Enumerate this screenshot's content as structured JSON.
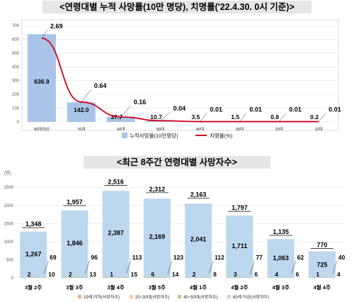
{
  "chart_data": [
    {
      "type": "bar",
      "title": "<연령대별 누적 사망률(10만 명당), 치명률('22.4.30. 0시 기준)>",
      "categories": [
        "80대이상",
        "70대",
        "60대",
        "50대",
        "40대",
        "30대",
        "20대",
        "10대"
      ],
      "yticks": [
        "0",
        "100",
        "200",
        "300",
        "400",
        "500",
        "600",
        "700"
      ],
      "ylim": [
        0,
        700
      ],
      "series": [
        {
          "name": "누적사망률(10만명당)",
          "kind": "bar",
          "color": "#a9c4e8",
          "values": [
            636.9,
            142.0,
            37.7,
            10.7,
            3.5,
            1.5,
            0.8,
            0.2
          ],
          "labels": [
            "636.9",
            "142.0",
            "37.7",
            "10.7",
            "3.5",
            "1.5",
            "0.8",
            "0.2"
          ]
        },
        {
          "name": "치명률(%)",
          "kind": "line",
          "color": "#d0021b",
          "values": [
            2.69,
            0.64,
            0.16,
            0.04,
            0.01,
            0.01,
            0.01,
            0.01
          ],
          "labels": [
            "2.69",
            "0.64",
            "0.16",
            "0.04",
            "0.01",
            "0.01",
            "0.01",
            "0.01"
          ]
        }
      ],
      "legend": "bottom"
    },
    {
      "type": "bar",
      "title": "<최근 8주간 연령대별 사망자수>",
      "unit_label": "(명)",
      "categories": [
        "3월 2주",
        "3월 3주",
        "3월 4주",
        "3월 5주",
        "4월 1주",
        "4월 2주",
        "4월 3주",
        "4월 4주"
      ],
      "yticks": [
        "0",
        "500",
        "1000",
        "1500",
        "2000",
        "2500"
      ],
      "ylim": [
        0,
        2700
      ],
      "totals": [
        1348,
        1957,
        2516,
        2312,
        2163,
        1797,
        1135,
        770
      ],
      "total_labels": [
        "1,348",
        "1,957",
        "2,516",
        "2,312",
        "2,163",
        "1,797",
        "1,135",
        "770"
      ],
      "series": [
        {
          "name": "19세 이하(사망자수)",
          "color": "#f4b183",
          "values": [
            0,
            0,
            0,
            0,
            0,
            0,
            0,
            0
          ],
          "labels": [
            "",
            "",
            "",
            "",
            "",
            "",
            "",
            ""
          ]
        },
        {
          "name": "20~30대(사망자수)",
          "color": "#f8cbad",
          "values": [
            2,
            2,
            1,
            6,
            2,
            3,
            4,
            1
          ],
          "labels": [
            "2",
            "2",
            "1",
            "6",
            "2",
            "3",
            "4",
            "1"
          ]
        },
        {
          "name": "40~50대(사망자수)",
          "color": "#a9d18e",
          "values": [
            10,
            13,
            15,
            14,
            8,
            6,
            6,
            4
          ],
          "labels": [
            "10",
            "13",
            "15",
            "14",
            "8",
            "6",
            "6",
            "4"
          ]
        },
        {
          "name": "60세 이상(사망자수)",
          "color": "#bdd7ee",
          "values": [
            1267,
            1846,
            2387,
            2169,
            2041,
            1711,
            1063,
            725
          ],
          "labels": [
            "1,267",
            "1,846",
            "2,387",
            "2,169",
            "2,041",
            "1,711",
            "1,063",
            "725"
          ]
        }
      ],
      "side_labels": [
        "69",
        "96",
        "113",
        "123",
        "112",
        "77",
        "62",
        "40"
      ],
      "legend": "bottom"
    }
  ]
}
